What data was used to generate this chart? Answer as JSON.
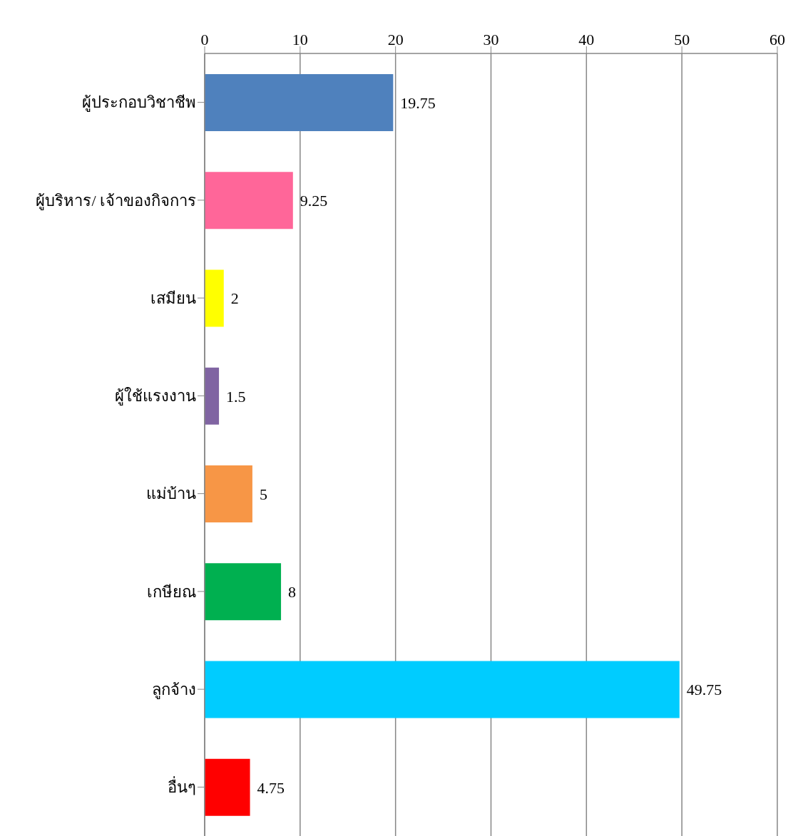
{
  "chart_data": {
    "type": "bar",
    "orientation": "horizontal",
    "categories": [
      "ผู้ประกอบวิชาชีพ",
      "ผู้บริหาร/ เจ้าของกิจการ",
      "เสมียน",
      "ผู้ใช้แรงงาน",
      "แม่บ้าน",
      "เกษียณ",
      "ลูกจ้าง",
      "อื่นๆ"
    ],
    "values": [
      19.75,
      9.25,
      2,
      1.5,
      5,
      8,
      49.75,
      4.75
    ],
    "colors": [
      "#4f81bd",
      "#ff6699",
      "#ffff00",
      "#8064a2",
      "#f79646",
      "#00b050",
      "#00ccff",
      "#ff0000"
    ],
    "xlim": [
      0,
      60
    ],
    "xticks": [
      0,
      10,
      20,
      30,
      40,
      50,
      60
    ],
    "grid": "x",
    "data_labels": true
  }
}
